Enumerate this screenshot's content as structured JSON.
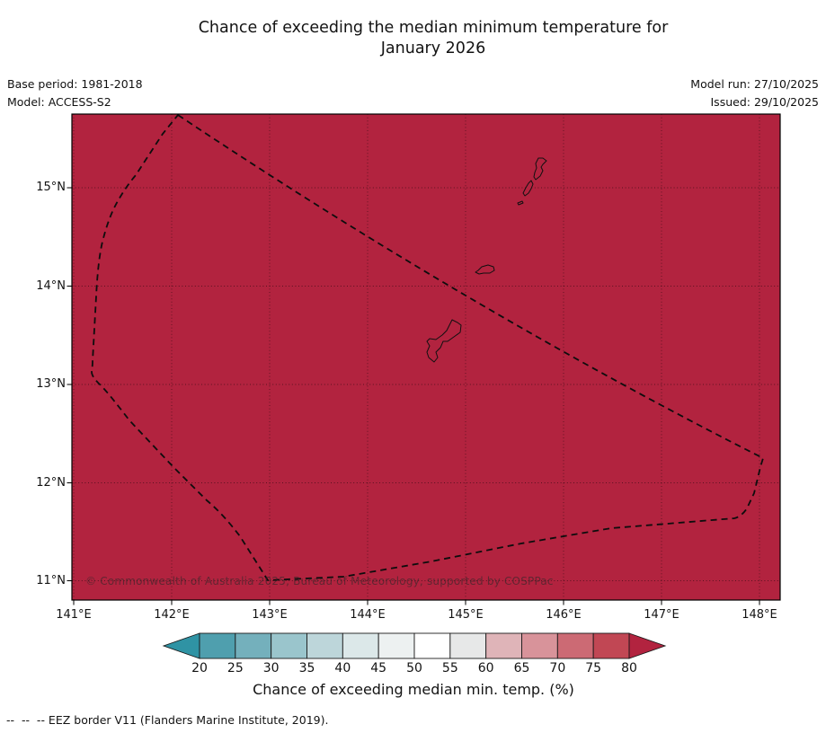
{
  "title": {
    "line1": "Chance of exceeding the median minimum temperature for",
    "line2": "January 2026"
  },
  "meta": {
    "base_period": "Base period: 1981-2018",
    "model": "Model: ACCESS-S2",
    "model_run": "Model run: 27/10/2025",
    "issued": "Issued: 29/10/2025"
  },
  "map": {
    "x_tick_labels": [
      "141°E",
      "142°E",
      "143°E",
      "144°E",
      "145°E",
      "146°E",
      "147°E",
      "148°E"
    ],
    "y_tick_labels": [
      "15°N",
      "14°N",
      "13°N",
      "12°N",
      "11°N"
    ],
    "watermark": "© Commonwealth of Australia 2025, Bureau of Meteorology, supported by COSPPac",
    "fill_color": "#b2233f",
    "eez_border_color": "#0d0d0d",
    "islands": [
      "saipan",
      "tinian",
      "aguijan",
      "rota",
      "guam"
    ]
  },
  "colorbar": {
    "tick_labels": [
      "20",
      "25",
      "30",
      "35",
      "40",
      "45",
      "50",
      "55",
      "60",
      "65",
      "70",
      "75",
      "80"
    ],
    "label": "Chance of exceeding median min. temp. (%)",
    "segment_colors": [
      "#4f9fae",
      "#74b0bc",
      "#9ac5cc",
      "#bdd6da",
      "#dce8e9",
      "#edf1f1",
      "#ffffff",
      "#e7e8e8",
      "#dfb4b8",
      "#d8939a",
      "#cc6a74",
      "#c14754"
    ],
    "left_arrow_color": "#2f93a4",
    "right_arrow_color": "#b2233f"
  },
  "footnote": "--  --  -- EEZ border V11 (Flanders Marine Institute, 2019)."
}
